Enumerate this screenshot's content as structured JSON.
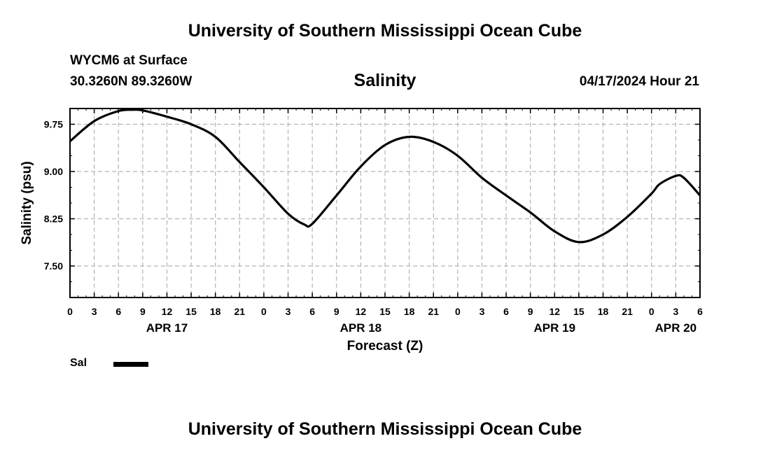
{
  "header": {
    "main_title": "University of Southern Mississippi Ocean Cube",
    "station": "WYCM6 at Surface",
    "coords": "30.3260N  89.3260W",
    "date_hour": "04/17/2024 Hour 21"
  },
  "footer": {
    "title": "University of Southern Mississippi Ocean Cube"
  },
  "chart_data": {
    "type": "line",
    "title": "Salinity",
    "xlabel": "Forecast (Z)",
    "ylabel": "Salinity (psu)",
    "ylim": [
      7.0,
      10.0
    ],
    "yticks": [
      "7.50",
      "8.25",
      "9.00",
      "9.75"
    ],
    "ytick_values": [
      7.5,
      8.25,
      9.0,
      9.75
    ],
    "xlim_hours": [
      0,
      78
    ],
    "xtick_hours": [
      0,
      3,
      6,
      9,
      12,
      15,
      18,
      21,
      24,
      27,
      30,
      33,
      36,
      39,
      42,
      45,
      48,
      51,
      54,
      57,
      60,
      63,
      66,
      69,
      72,
      75,
      78
    ],
    "xtick_labels": [
      "0",
      "3",
      "6",
      "9",
      "12",
      "15",
      "18",
      "21",
      "0",
      "3",
      "6",
      "9",
      "12",
      "15",
      "18",
      "21",
      "0",
      "3",
      "6",
      "9",
      "12",
      "15",
      "18",
      "21",
      "0",
      "3",
      "6"
    ],
    "day_labels": [
      {
        "hour": 12,
        "label": "APR 17"
      },
      {
        "hour": 36,
        "label": "APR 18"
      },
      {
        "hour": 60,
        "label": "APR 19"
      },
      {
        "hour": 75,
        "label": "APR 20"
      }
    ],
    "grid": true,
    "series": [
      {
        "name": "Sal",
        "color": "#000000",
        "x": [
          0,
          3,
          6,
          7.8,
          9,
          12,
          15,
          18,
          21,
          24,
          27,
          29,
          30,
          33,
          36,
          39,
          42,
          45,
          48,
          51,
          54,
          57,
          60,
          63,
          66,
          69,
          72,
          73,
          75,
          76,
          78
        ],
        "y": [
          9.48,
          9.8,
          9.96,
          9.98,
          9.97,
          9.87,
          9.75,
          9.55,
          9.15,
          8.75,
          8.33,
          8.16,
          8.17,
          8.62,
          9.08,
          9.42,
          9.55,
          9.47,
          9.25,
          8.9,
          8.62,
          8.35,
          8.05,
          7.88,
          8.0,
          8.28,
          8.65,
          8.8,
          8.93,
          8.9,
          8.62
        ]
      }
    ]
  }
}
